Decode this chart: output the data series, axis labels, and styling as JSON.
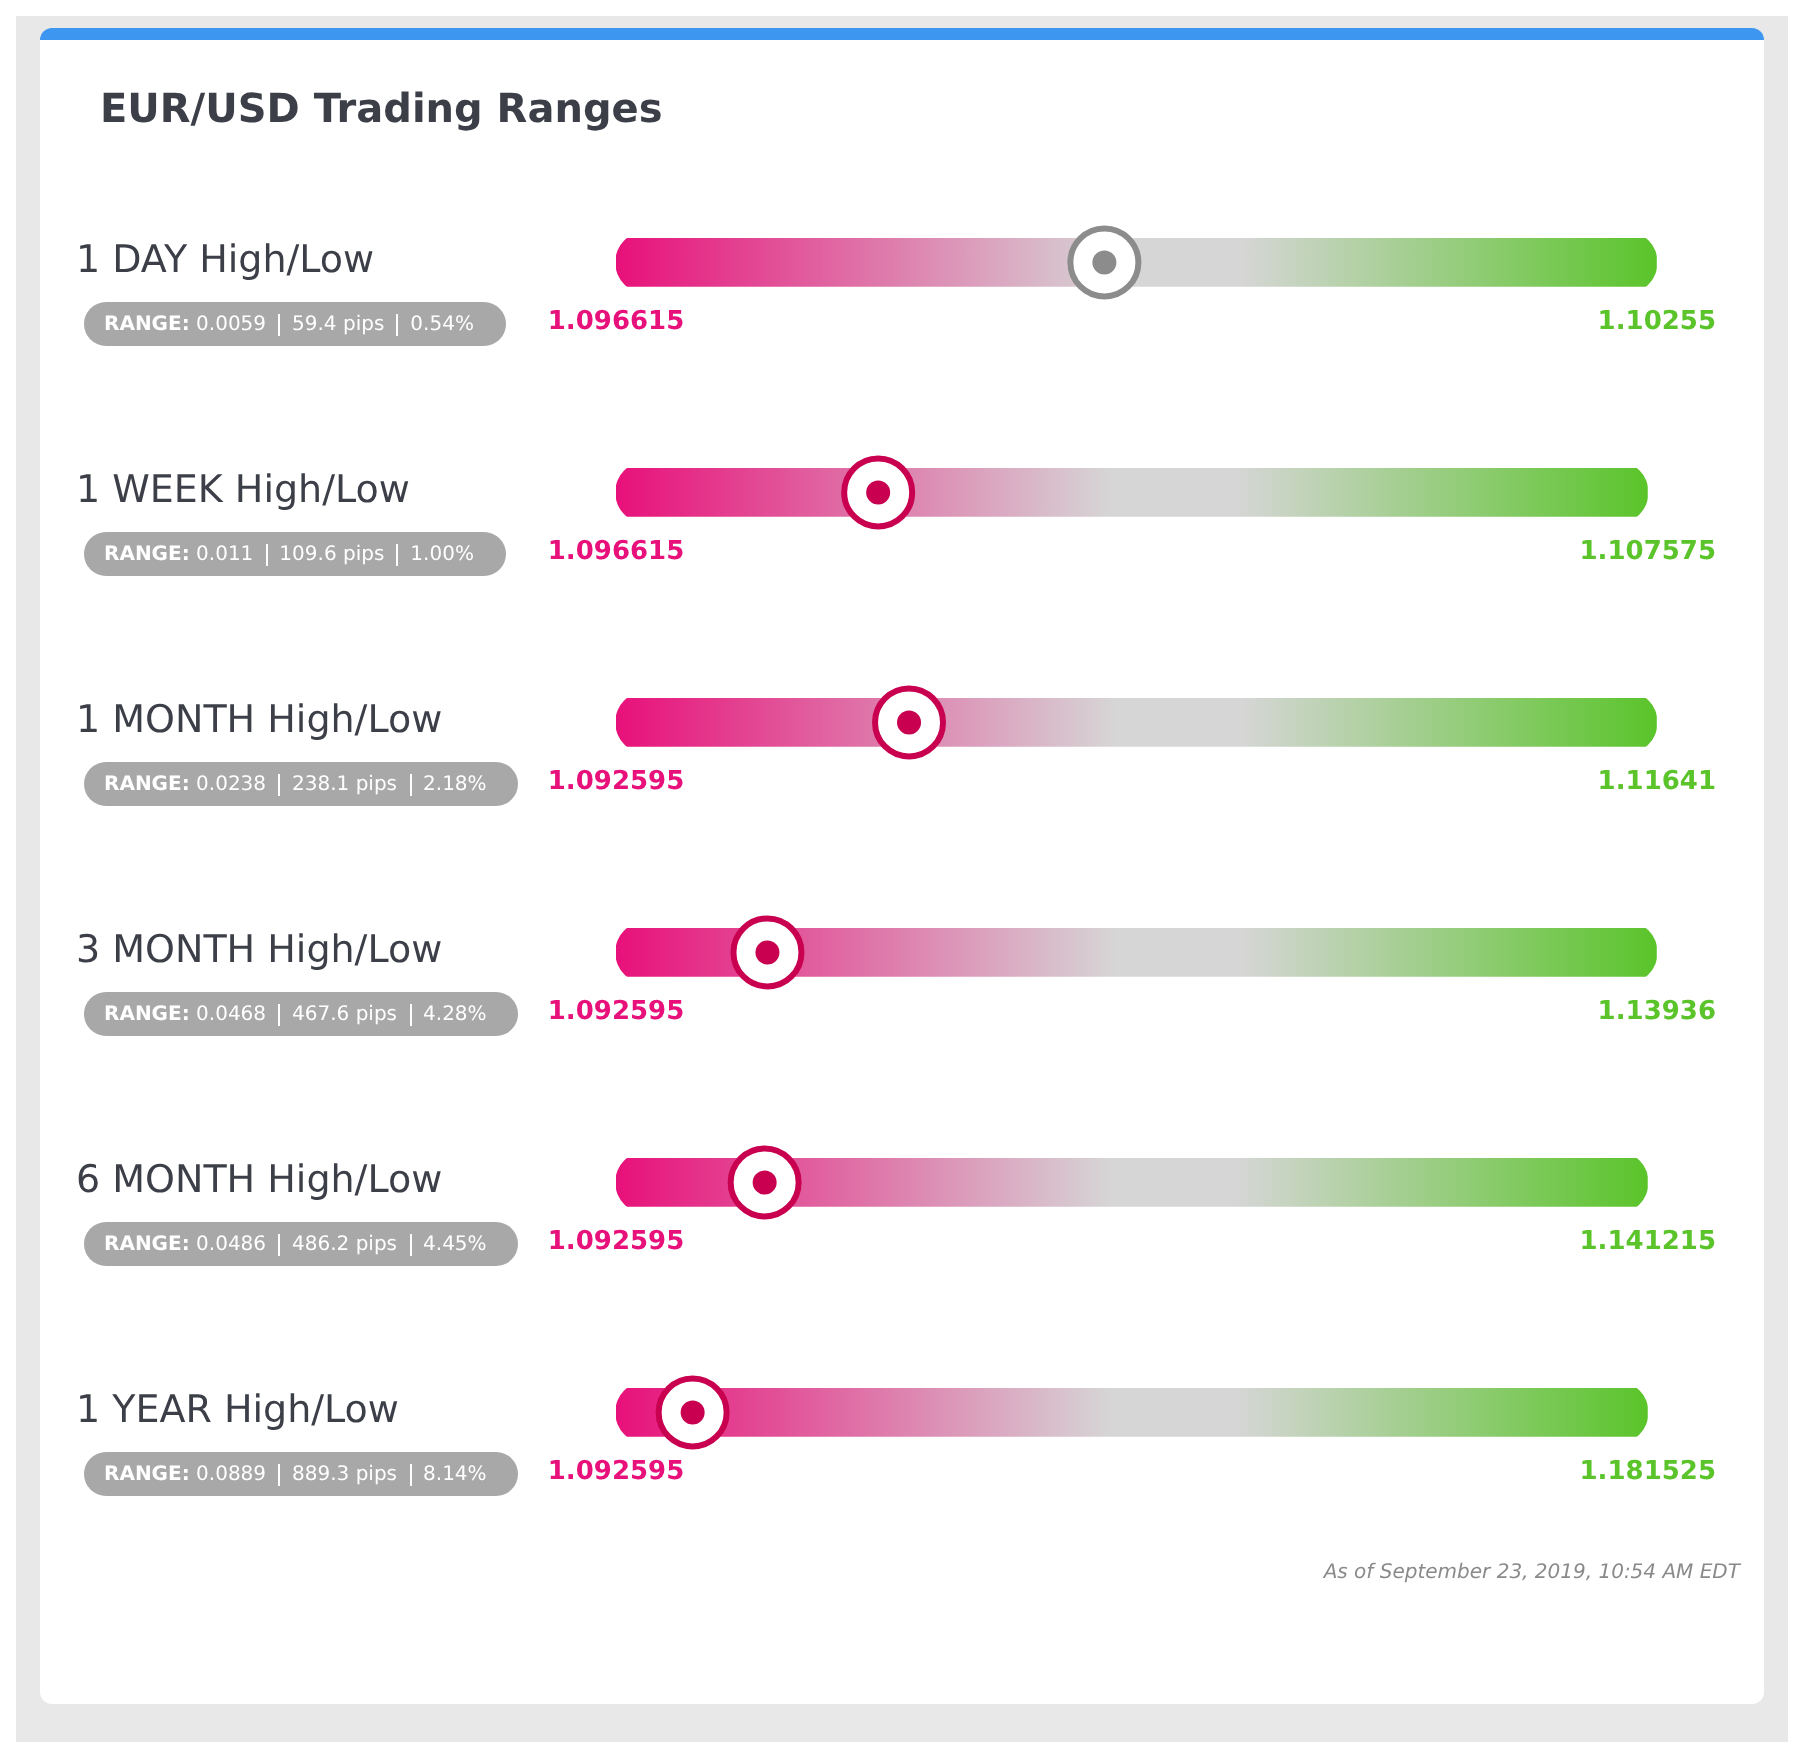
{
  "chart_data": [
    {
      "type": "bar",
      "title": "EUR/USD Trading Ranges",
      "orientation": "horizontal",
      "categories": [
        "1 DAY High/Low"
      ],
      "annotations": [
        "RANGE: 0.0059",
        "59.4 pips",
        "0.54%"
      ],
      "xlim": [
        1.096615,
        1.10255
      ],
      "xticks": [
        1.096615,
        1.10255
      ],
      "grid": false,
      "legend": false,
      "marker": "circle",
      "series": [
        {
          "base": [
            1.096615
          ],
          "values": [
            0.005935
          ]
        },
        {
          "type": "scatter",
          "color": "#8c8c8c",
          "values": [
            1.0994
          ]
        }
      ]
    },
    {
      "type": "bar",
      "orientation": "horizontal",
      "categories": [
        "1 WEEK High/Low"
      ],
      "annotations": [
        "RANGE: 0.011",
        "109.6 pips",
        "1.00%"
      ],
      "xlim": [
        1.096615,
        1.107575
      ],
      "xticks": [
        1.096615,
        1.107575
      ],
      "grid": false,
      "legend": false,
      "marker": "circle",
      "series": [
        {
          "base": [
            1.096615
          ],
          "values": [
            0.01096
          ]
        },
        {
          "type": "scatter",
          "color": "#c8004f",
          "values": [
            1.0994
          ]
        }
      ]
    },
    {
      "type": "bar",
      "orientation": "horizontal",
      "categories": [
        "1 MONTH High/Low"
      ],
      "annotations": [
        "RANGE: 0.0238",
        "238.1 pips",
        "2.18%"
      ],
      "xlim": [
        1.092595,
        1.11641
      ],
      "xticks": [
        1.092595,
        1.11641
      ],
      "grid": false,
      "legend": false,
      "marker": "circle",
      "series": [
        {
          "base": [
            1.092595
          ],
          "values": [
            0.023815
          ]
        },
        {
          "type": "scatter",
          "color": "#c8004f",
          "values": [
            1.0993
          ]
        }
      ]
    },
    {
      "type": "bar",
      "orientation": "horizontal",
      "categories": [
        "3 MONTH High/Low"
      ],
      "annotations": [
        "RANGE: 0.0468",
        "467.6 pips",
        "4.28%"
      ],
      "xlim": [
        1.092595,
        1.13936
      ],
      "xticks": [
        1.092595,
        1.13936
      ],
      "grid": false,
      "legend": false,
      "marker": "circle",
      "series": [
        {
          "base": [
            1.092595
          ],
          "values": [
            0.046765
          ]
        },
        {
          "type": "scatter",
          "color": "#c8004f",
          "values": [
            1.0994
          ]
        }
      ]
    },
    {
      "type": "bar",
      "orientation": "horizontal",
      "categories": [
        "6 MONTH High/Low"
      ],
      "annotations": [
        "RANGE: 0.0486",
        "486.2 pips",
        "4.45%"
      ],
      "xlim": [
        1.092595,
        1.141215
      ],
      "xticks": [
        1.092595,
        1.141215
      ],
      "grid": false,
      "legend": false,
      "marker": "circle",
      "series": [
        {
          "base": [
            1.092595
          ],
          "values": [
            0.04862
          ]
        },
        {
          "type": "scatter",
          "color": "#c8004f",
          "values": [
            1.0996
          ]
        }
      ]
    },
    {
      "type": "bar",
      "orientation": "horizontal",
      "categories": [
        "1 YEAR High/Low"
      ],
      "annotations": [
        "RANGE: 0.0889",
        "889.3 pips",
        "8.14%",
        "As of September 23, 2019, 10:54 AM EDT"
      ],
      "xlim": [
        1.092595,
        1.181525
      ],
      "xticks": [
        1.092595,
        1.181525
      ],
      "grid": false,
      "legend": false,
      "marker": "circle",
      "series": [
        {
          "base": [
            1.092595
          ],
          "values": [
            0.08893
          ]
        },
        {
          "type": "scatter",
          "color": "#c8004f",
          "values": [
            1.0992
          ]
        }
      ]
    }
  ]
}
